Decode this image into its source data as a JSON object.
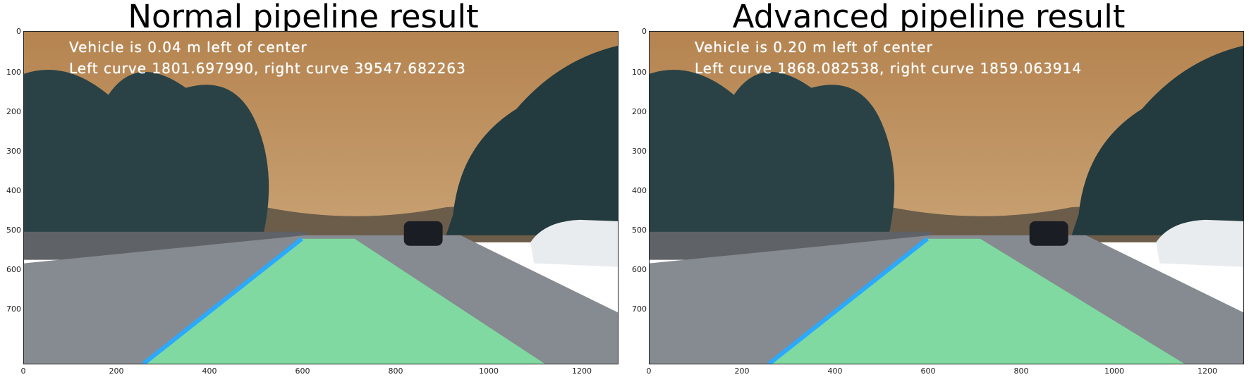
{
  "panels": [
    {
      "title": "Normal pipeline result",
      "line1": "Vehicle is 0.04 m left of center",
      "line2": "Left curve 1801.697990, right curve 39547.682263"
    },
    {
      "title": "Advanced pipeline result",
      "line1": "Vehicle is 0.20 m left of center",
      "line2": "Left curve 1868.082538, right curve 1859.063914"
    }
  ],
  "axis": {
    "x_ticks": [
      "0",
      "200",
      "400",
      "600",
      "800",
      "1000",
      "1200"
    ],
    "y_ticks": [
      "0",
      "100",
      "200",
      "300",
      "400",
      "500",
      "600",
      "700"
    ],
    "x_range": [
      0,
      1280
    ],
    "y_range": [
      720,
      0
    ]
  },
  "colors": {
    "sky": "#b98a55",
    "trees": "#243a3f",
    "road": "#7c8088",
    "lane_fill": "#7fe6a2",
    "lane_line": "#2aa9ff",
    "car_white": "#e9ecef",
    "car_dark": "#1b1d24"
  }
}
